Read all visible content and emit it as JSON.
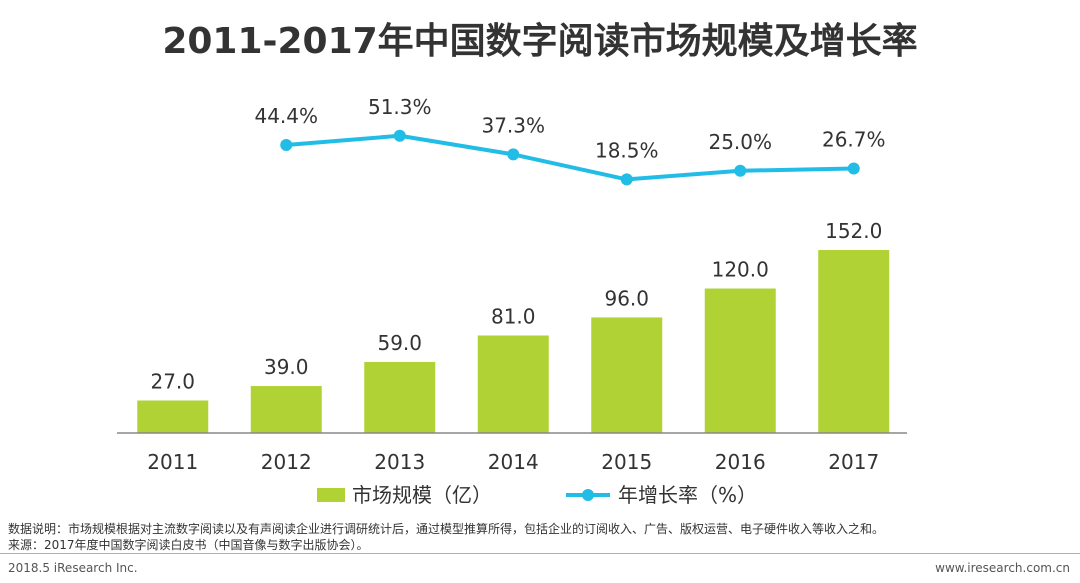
{
  "chart_data": {
    "type": "bar+line",
    "title": "2011-2017年中国数字阅读市场规模及增长率",
    "categories": [
      "2011",
      "2012",
      "2013",
      "2014",
      "2015",
      "2016",
      "2017"
    ],
    "series": [
      {
        "name": "市场规模（亿）",
        "type": "bar",
        "values": [
          27.0,
          39.0,
          59.0,
          81.0,
          96.0,
          120.0,
          152.0
        ],
        "labels": [
          "27.0",
          "39.0",
          "59.0",
          "81.0",
          "96.0",
          "120.0",
          "152.0"
        ],
        "color": "#b0d235"
      },
      {
        "name": "年增长率（%）",
        "type": "line",
        "x": [
          "2012",
          "2013",
          "2014",
          "2015",
          "2016",
          "2017"
        ],
        "values": [
          44.4,
          51.3,
          37.3,
          18.5,
          25.0,
          26.7
        ],
        "labels": [
          "44.4%",
          "51.3%",
          "37.3%",
          "18.5%",
          "25.0%",
          "26.7%"
        ],
        "color": "#22bde6"
      }
    ],
    "bar_ylim": [
      0,
      160
    ],
    "line_ylim": [
      0,
      60
    ],
    "grid": false,
    "legend": "bottom-center"
  },
  "notes": {
    "description": "数据说明：市场规模根据对主流数字阅读以及有声阅读企业进行调研统计后，通过模型推算所得，包括企业的订阅收入、广告、版权运营、电子硬件收入等收入之和。",
    "source": "来源：2017年度中国数字阅读白皮书（中国音像与数字出版协会）。"
  },
  "footer": {
    "left": "2018.5 iResearch Inc.",
    "right": "www.iresearch.com.cn"
  }
}
